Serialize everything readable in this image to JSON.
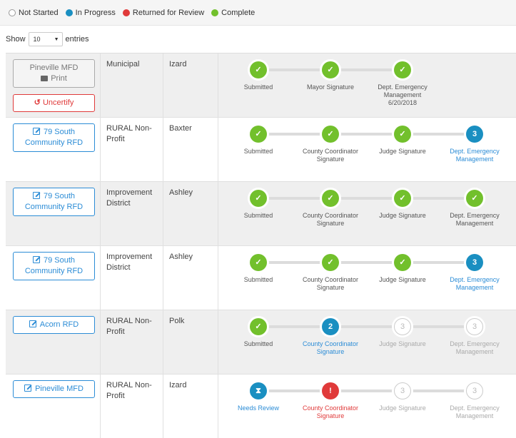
{
  "legend": [
    {
      "label": "Not Started",
      "status": "notstarted"
    },
    {
      "label": "In Progress",
      "status": "inprogress"
    },
    {
      "label": "Returned for Review",
      "status": "returned"
    },
    {
      "label": "Complete",
      "status": "complete"
    }
  ],
  "show": {
    "prefix": "Show",
    "value": "10",
    "suffix": "entries"
  },
  "rows": [
    {
      "shaded": true,
      "buttons": [
        {
          "style": "gray",
          "text": "Pineville MFD",
          "subtext": "Print",
          "icon": "printer-icon"
        },
        {
          "style": "red",
          "text": "Uncertify",
          "icon": "undo-icon"
        }
      ],
      "type": "Municipal",
      "county": "Izard",
      "steps": [
        {
          "status": "complete",
          "glyph": "✓",
          "label": "Submitted",
          "color": "normal"
        },
        {
          "status": "complete",
          "glyph": "✓",
          "label": "Mayor Signature",
          "color": "normal"
        },
        {
          "status": "complete",
          "glyph": "✓",
          "label": "Dept. Emergency Management",
          "sub": "6/20/2018",
          "color": "normal"
        }
      ]
    },
    {
      "shaded": false,
      "buttons": [
        {
          "style": "blue",
          "text": "79 South Community RFD",
          "icon": "edit-icon"
        }
      ],
      "type": "RURAL Non-Profit",
      "county": "Baxter",
      "steps": [
        {
          "status": "complete",
          "glyph": "✓",
          "label": "Submitted",
          "color": "normal"
        },
        {
          "status": "complete",
          "glyph": "✓",
          "label": "County Coordinator Signature",
          "color": "normal"
        },
        {
          "status": "complete",
          "glyph": "✓",
          "label": "Judge Signature",
          "color": "normal"
        },
        {
          "status": "inprogress",
          "glyph": "3",
          "label": "Dept. Emergency Management",
          "color": "blue"
        }
      ]
    },
    {
      "shaded": true,
      "buttons": [
        {
          "style": "blue",
          "text": "79 South Community RFD",
          "icon": "edit-icon"
        }
      ],
      "type": "Improvement District",
      "county": "Ashley",
      "steps": [
        {
          "status": "complete",
          "glyph": "✓",
          "label": "Submitted",
          "color": "normal"
        },
        {
          "status": "complete",
          "glyph": "✓",
          "label": "County Coordinator Signature",
          "color": "normal"
        },
        {
          "status": "complete",
          "glyph": "✓",
          "label": "Judge Signature",
          "color": "normal"
        },
        {
          "status": "complete",
          "glyph": "✓",
          "label": "Dept. Emergency Management",
          "color": "normal"
        }
      ]
    },
    {
      "shaded": false,
      "buttons": [
        {
          "style": "blue",
          "text": "79 South Community RFD",
          "icon": "edit-icon"
        }
      ],
      "type": "Improvement District",
      "county": "Ashley",
      "steps": [
        {
          "status": "complete",
          "glyph": "✓",
          "label": "Submitted",
          "color": "normal"
        },
        {
          "status": "complete",
          "glyph": "✓",
          "label": "County Coordinator Signature",
          "color": "normal"
        },
        {
          "status": "complete",
          "glyph": "✓",
          "label": "Judge Signature",
          "color": "normal"
        },
        {
          "status": "inprogress",
          "glyph": "3",
          "label": "Dept. Emergency Management",
          "color": "blue"
        }
      ]
    },
    {
      "shaded": true,
      "buttons": [
        {
          "style": "blue",
          "text": "Acorn RFD",
          "icon": "edit-icon"
        }
      ],
      "type": "RURAL Non-Profit",
      "county": "Polk",
      "steps": [
        {
          "status": "complete",
          "glyph": "✓",
          "label": "Submitted",
          "color": "normal"
        },
        {
          "status": "inprogress",
          "glyph": "2",
          "label": "County Coordinator Signature",
          "color": "blue"
        },
        {
          "status": "notstarted",
          "glyph": "3",
          "label": "Judge Signature",
          "color": "gray"
        },
        {
          "status": "notstarted",
          "glyph": "3",
          "label": "Dept. Emergency Management",
          "color": "gray"
        }
      ]
    },
    {
      "shaded": false,
      "buttons": [
        {
          "style": "blue",
          "text": "Pineville MFD",
          "icon": "edit-icon"
        }
      ],
      "type": "RURAL Non-Profit",
      "county": "Izard",
      "steps": [
        {
          "status": "review",
          "glyph": "⧗",
          "label": "Needs Review",
          "color": "blue"
        },
        {
          "status": "returned",
          "glyph": "!",
          "label": "County Coordinator Signature",
          "color": "red"
        },
        {
          "status": "notstarted",
          "glyph": "3",
          "label": "Judge Signature",
          "color": "gray"
        },
        {
          "status": "notstarted",
          "glyph": "3",
          "label": "Dept. Emergency Management",
          "color": "gray"
        }
      ]
    }
  ]
}
